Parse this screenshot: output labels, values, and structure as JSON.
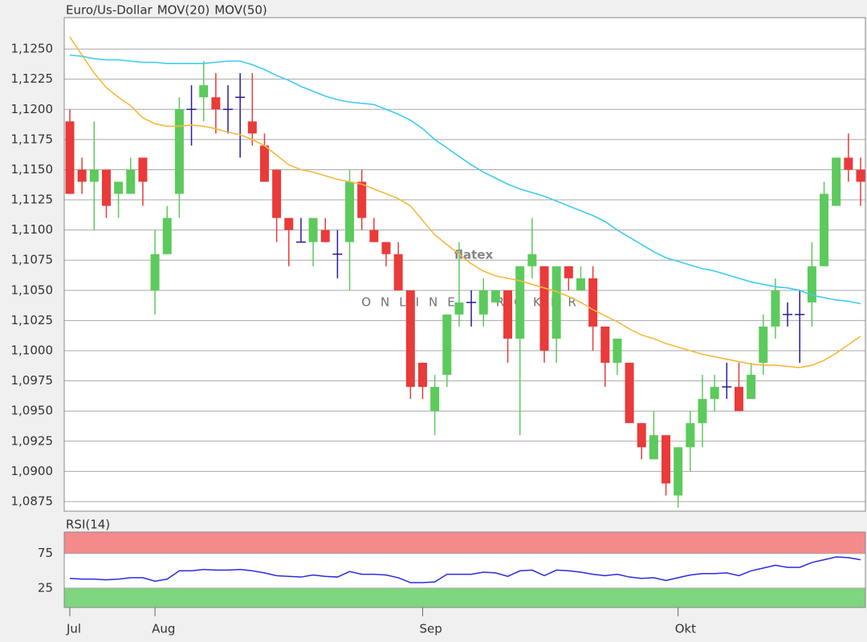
{
  "chart_data": [
    {
      "type": "candlestick",
      "title": "Euro/Us-Dollar",
      "title_color": "#e8603c",
      "up_color": "#5cca5c",
      "down_color": "#ea3a3a",
      "doji_color": "#2a1a9a",
      "grid": true,
      "categories": [
        "Jul",
        null,
        null,
        null,
        null,
        null,
        null,
        "Aug",
        null,
        null,
        null,
        null,
        null,
        null,
        null,
        null,
        null,
        null,
        null,
        null,
        null,
        null,
        null,
        null,
        null,
        null,
        null,
        null,
        null,
        "Sep",
        null,
        null,
        null,
        null,
        null,
        null,
        null,
        null,
        null,
        null,
        null,
        null,
        null,
        null,
        null,
        null,
        null,
        null,
        null,
        null,
        "Okt",
        null,
        null,
        null,
        null,
        null,
        null,
        null,
        null,
        null,
        null,
        null,
        null,
        null,
        null,
        null
      ],
      "open": [
        1.119,
        1.115,
        1.114,
        1.115,
        1.113,
        1.113,
        1.116,
        1.105,
        1.108,
        1.113,
        1.12,
        1.121,
        1.121,
        1.12,
        1.121,
        1.119,
        1.117,
        1.115,
        1.111,
        1.109,
        1.109,
        1.11,
        1.108,
        1.109,
        1.114,
        1.11,
        1.109,
        1.108,
        1.105,
        1.099,
        1.095,
        1.098,
        1.103,
        1.104,
        1.103,
        1.104,
        1.105,
        1.101,
        1.107,
        1.107,
        1.101,
        1.107,
        1.105,
        1.106,
        1.102,
        1.099,
        1.099,
        1.094,
        1.091,
        1.093,
        1.088,
        1.092,
        1.094,
        1.096,
        1.097,
        1.097,
        1.096,
        1.099,
        1.102,
        1.103,
        1.103,
        1.104,
        1.107,
        1.112,
        1.116,
        1.115
      ],
      "high": [
        1.12,
        1.116,
        1.119,
        1.115,
        1.114,
        1.116,
        1.116,
        1.11,
        1.112,
        1.121,
        1.122,
        1.124,
        1.123,
        1.122,
        1.123,
        1.123,
        1.118,
        1.115,
        1.111,
        1.111,
        1.111,
        1.111,
        1.11,
        1.115,
        1.115,
        1.111,
        1.109,
        1.109,
        1.105,
        1.099,
        1.098,
        1.103,
        1.109,
        1.105,
        1.106,
        1.105,
        1.105,
        1.107,
        1.111,
        1.107,
        1.107,
        1.107,
        1.107,
        1.107,
        1.102,
        1.101,
        1.099,
        1.094,
        1.095,
        1.093,
        1.092,
        1.095,
        1.098,
        1.098,
        1.099,
        1.099,
        1.099,
        1.103,
        1.106,
        1.104,
        1.105,
        1.109,
        1.114,
        1.116,
        1.118,
        1.116
      ],
      "low": [
        1.113,
        1.113,
        1.11,
        1.111,
        1.111,
        1.113,
        1.112,
        1.103,
        1.108,
        1.111,
        1.117,
        1.119,
        1.118,
        1.118,
        1.116,
        1.117,
        1.114,
        1.109,
        1.107,
        1.109,
        1.107,
        1.109,
        1.106,
        1.105,
        1.11,
        1.109,
        1.107,
        1.105,
        1.096,
        1.096,
        1.093,
        1.097,
        1.102,
        1.102,
        1.102,
        1.104,
        1.099,
        1.093,
        1.106,
        1.099,
        1.099,
        1.105,
        1.105,
        1.1,
        1.097,
        1.098,
        1.094,
        1.091,
        1.091,
        1.088,
        1.087,
        1.09,
        1.092,
        1.095,
        1.096,
        1.095,
        1.096,
        1.098,
        1.101,
        1.102,
        1.099,
        1.102,
        1.107,
        1.112,
        1.114,
        1.112
      ],
      "close": [
        1.113,
        1.114,
        1.115,
        1.112,
        1.114,
        1.115,
        1.114,
        1.108,
        1.111,
        1.12,
        1.12,
        1.122,
        1.12,
        1.12,
        1.121,
        1.118,
        1.114,
        1.111,
        1.11,
        1.109,
        1.111,
        1.109,
        1.108,
        1.114,
        1.111,
        1.109,
        1.108,
        1.105,
        1.097,
        1.097,
        1.097,
        1.103,
        1.104,
        1.104,
        1.105,
        1.105,
        1.101,
        1.107,
        1.108,
        1.1,
        1.107,
        1.106,
        1.106,
        1.102,
        1.099,
        1.101,
        1.094,
        1.092,
        1.093,
        1.089,
        1.092,
        1.094,
        1.096,
        1.097,
        1.097,
        1.095,
        1.098,
        1.102,
        1.105,
        1.103,
        1.103,
        1.107,
        1.113,
        1.116,
        1.115,
        1.114
      ],
      "series": [
        {
          "name": "MOV(20)",
          "color": "#f5b93c",
          "values": [
            1.126,
            1.1245,
            1.123,
            1.1218,
            1.121,
            1.1203,
            1.1193,
            1.1188,
            1.1186,
            1.1186,
            1.1187,
            1.1186,
            1.1184,
            1.1181,
            1.1179,
            1.1175,
            1.117,
            1.1162,
            1.1154,
            1.115,
            1.1148,
            1.1145,
            1.1142,
            1.114,
            1.1138,
            1.1134,
            1.113,
            1.1126,
            1.112,
            1.1108,
            1.1096,
            1.1088,
            1.108,
            1.1072,
            1.1066,
            1.1062,
            1.106,
            1.1058,
            1.1055,
            1.1052,
            1.1049,
            1.1045,
            1.104,
            1.1034,
            1.1029,
            1.1024,
            1.1018,
            1.1013,
            1.101,
            1.1006,
            1.1003,
            1.1,
            1.0997,
            1.0995,
            1.0993,
            1.0991,
            1.0989,
            1.0988,
            1.0988,
            1.0987,
            1.0986,
            1.0988,
            1.0992,
            1.0998,
            1.1005,
            1.1012
          ]
        },
        {
          "name": "MOV(50)",
          "color": "#3ccbf0",
          "values": [
            1.1245,
            1.1244,
            1.1242,
            1.1241,
            1.1241,
            1.124,
            1.1239,
            1.1239,
            1.1238,
            1.1238,
            1.1238,
            1.1238,
            1.1239,
            1.124,
            1.124,
            1.1237,
            1.1233,
            1.1228,
            1.1224,
            1.1219,
            1.1215,
            1.1211,
            1.1208,
            1.1206,
            1.1205,
            1.1204,
            1.12,
            1.1196,
            1.1191,
            1.1184,
            1.1175,
            1.1168,
            1.1161,
            1.1154,
            1.1148,
            1.1143,
            1.1138,
            1.1134,
            1.1131,
            1.1128,
            1.1124,
            1.112,
            1.1116,
            1.1112,
            1.1107,
            1.11,
            1.1094,
            1.1088,
            1.1082,
            1.1077,
            1.1074,
            1.1071,
            1.1068,
            1.1066,
            1.1063,
            1.106,
            1.1057,
            1.1055,
            1.1053,
            1.1052,
            1.105,
            1.1046,
            1.1044,
            1.1042,
            1.1041,
            1.1039
          ]
        }
      ],
      "ylim": [
        1.0867,
        1.1276
      ],
      "yticks": [
        {
          "value": 1.0875,
          "label": "1,0875"
        },
        {
          "value": 1.09,
          "label": "1,0900"
        },
        {
          "value": 1.0925,
          "label": "1,0925"
        },
        {
          "value": 1.095,
          "label": "1,0950"
        },
        {
          "value": 1.0975,
          "label": "1,0975"
        },
        {
          "value": 1.1,
          "label": "1,1000"
        },
        {
          "value": 1.1025,
          "label": "1,1025"
        },
        {
          "value": 1.105,
          "label": "1,1050"
        },
        {
          "value": 1.1075,
          "label": "1,1075"
        },
        {
          "value": 1.11,
          "label": "1,1100"
        },
        {
          "value": 1.1125,
          "label": "1,1125"
        },
        {
          "value": 1.115,
          "label": "1,1150"
        },
        {
          "value": 1.1175,
          "label": "1,1175"
        },
        {
          "value": 1.12,
          "label": "1,1200"
        },
        {
          "value": 1.1225,
          "label": "1,1225"
        },
        {
          "value": 1.125,
          "label": "1,1250"
        }
      ],
      "watermark": "flatex",
      "watermark_sub": "ONLINE BROKER"
    },
    {
      "type": "line",
      "title": "RSI(14)",
      "title_color": "#2a1ab0",
      "color": "#2a2ae0",
      "values": [
        39,
        38,
        38,
        37,
        38,
        40,
        40,
        35,
        38,
        50,
        50,
        52,
        51,
        51,
        52,
        50,
        47,
        43,
        42,
        41,
        44,
        42,
        41,
        49,
        45,
        45,
        44,
        40,
        33,
        33,
        34,
        45,
        45,
        45,
        48,
        47,
        42,
        50,
        51,
        43,
        51,
        50,
        48,
        45,
        43,
        45,
        41,
        39,
        40,
        36,
        40,
        44,
        46,
        46,
        47,
        43,
        50,
        54,
        58,
        55,
        55,
        62,
        66,
        70,
        69,
        66
      ],
      "ylim": [
        -3,
        106
      ],
      "yticks": [
        25,
        75
      ],
      "zones": [
        {
          "above": 75,
          "color": "#f58a8a"
        },
        {
          "below": 25,
          "color": "#7ed67e"
        }
      ]
    }
  ]
}
